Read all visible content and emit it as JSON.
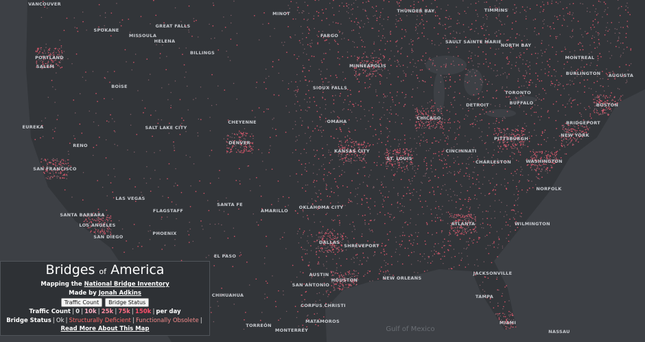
{
  "map": {
    "places": [
      "VANCOUVER",
      "SPOKANE",
      "GREAT FALLS",
      "MINOT",
      "THUNDER BAY",
      "TIMMINS",
      "MISSOULA",
      "HELENA",
      "FARGO",
      "SAULT SAINTE MARIE",
      "NORTH BAY",
      "PORTLAND",
      "BILLINGS",
      "MONTREAL",
      "SALEM",
      "MINNEAPOLIS",
      "BURLINGTON",
      "AUGUSTA",
      "BOISE",
      "SIOUX FALLS",
      "TORONTO",
      "DETROIT",
      "BUFFALO",
      "BOSTON",
      "CHEYENNE",
      "OMAHA",
      "CHICAGO",
      "EUREKA",
      "SALT LAKE CITY",
      "BRIDGEPORT",
      "PITTSBURGH",
      "NEW YORK",
      "DENVER",
      "RENO",
      "KANSAS CITY",
      "CINCINNATI",
      "ST. LOUIS",
      "CHARLESTON",
      "WASHINGTON",
      "SAN FRANCISCO",
      "NORFOLK",
      "LAS VEGAS",
      "OKLAHOMA CITY",
      "SANTA FE",
      "AMARILLO",
      "FLAGSTAFF",
      "SANTA BARBARA",
      "LOS ANGELES",
      "WILMINGTON",
      "ATLANTA",
      "PHOENIX",
      "SAN DIEGO",
      "DALLAS",
      "SHREVEPORT",
      "EL PASO",
      "JACKSONVILLE",
      "AUSTIN",
      "NEW ORLEANS",
      "HOUSTON",
      "SAN ANTONIO",
      "TAMPA",
      "CHIHUAHUA",
      "CORPUS CHRISTI",
      "MIAMI",
      "TORREÓN",
      "MONTERREY",
      "MATAMOROS",
      "NASSAU"
    ],
    "water": "Gulf of Mexico"
  },
  "panel": {
    "title": [
      "Bridges",
      "of",
      "America"
    ],
    "subtitle": "Mapping the",
    "subtitle_link": "National Bridge Inventory",
    "byline": "Made by",
    "author": "Jonah Adkins",
    "buttons": [
      "Traffic Count",
      "Bridge Status"
    ],
    "traffic_label": "Traffic Count",
    "traffic_levels": [
      {
        "label": "0",
        "color": "#e8e8e8"
      },
      {
        "label": "10k",
        "color": "#ffb3c6"
      },
      {
        "label": "25k",
        "color": "#ff8fa3"
      },
      {
        "label": "75k",
        "color": "#ff6b81"
      },
      {
        "label": "150k",
        "color": "#ff4d6a"
      }
    ],
    "traffic_unit": "per day",
    "status_label": "Bridge Status",
    "statuses": [
      {
        "label": "Ok",
        "color": "#e8e8e8"
      },
      {
        "label": "Structurally Deficient",
        "color": "#ff6b6b"
      },
      {
        "label": "Functionally Obsolete",
        "color": "#f28a8a"
      }
    ],
    "link": "Read More About This Map"
  }
}
